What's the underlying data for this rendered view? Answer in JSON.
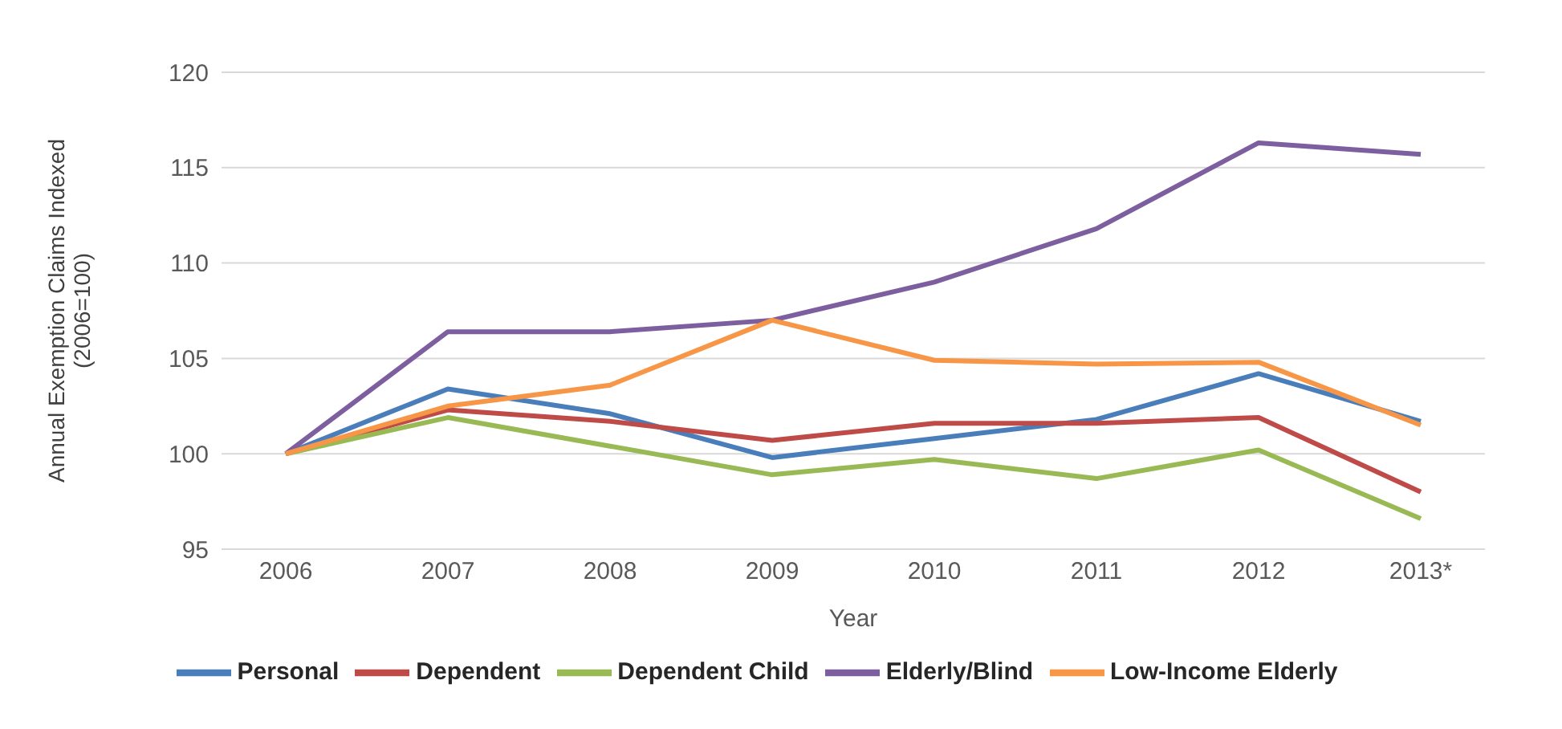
{
  "chart_data": {
    "type": "line",
    "xlabel": "Year",
    "ylabel": "Annual Exemption Claims Indexed\n(2006=100)",
    "categories": [
      "2006",
      "2007",
      "2008",
      "2009",
      "2010",
      "2011",
      "2012",
      "2013*"
    ],
    "series": [
      {
        "name": "Personal",
        "color": "#4a7ebb",
        "values": [
          100,
          103.4,
          102.1,
          99.8,
          100.8,
          101.8,
          104.2,
          101.7
        ]
      },
      {
        "name": "Dependent",
        "color": "#be4b48",
        "values": [
          100,
          102.3,
          101.7,
          100.7,
          101.6,
          101.6,
          101.9,
          98
        ]
      },
      {
        "name": "Dependent Child",
        "color": "#98b954",
        "values": [
          100,
          101.9,
          100.4,
          98.9,
          99.7,
          98.7,
          100.2,
          96.6
        ]
      },
      {
        "name": "Elderly/Blind",
        "color": "#7d5fa0",
        "values": [
          100,
          106.4,
          106.4,
          107,
          109,
          111.8,
          116.3,
          115.7
        ]
      },
      {
        "name": "Low-Income Elderly",
        "color": "#f79646",
        "values": [
          100,
          102.5,
          103.6,
          107,
          104.9,
          104.7,
          104.8,
          101.5
        ]
      }
    ],
    "ylim": [
      95,
      120
    ],
    "yticks": [
      95,
      100,
      105,
      110,
      115,
      120
    ],
    "grid": "y",
    "legend": "bottom",
    "marker": "none",
    "line_style": "solid"
  }
}
